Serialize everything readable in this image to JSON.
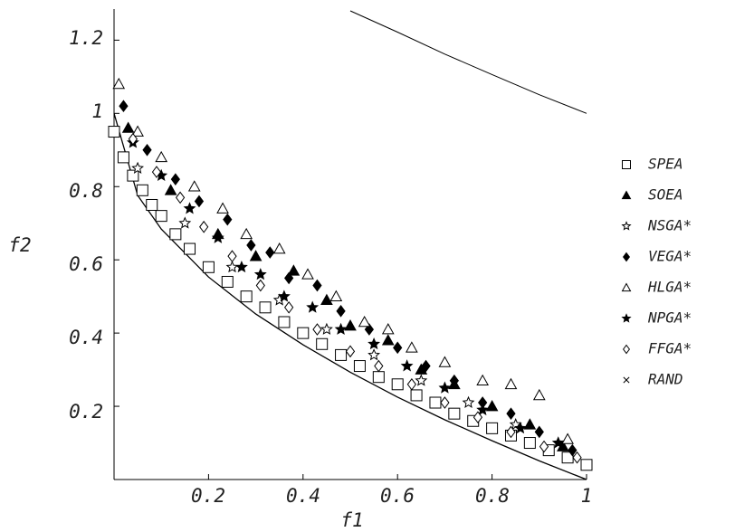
{
  "chart_data": {
    "type": "scatter",
    "xlabel": "f1",
    "ylabel": "f2",
    "xlim": [
      0,
      1
    ],
    "ylim": [
      0,
      1.28
    ],
    "xticks": [
      "0.2",
      "0.4",
      "0.6",
      "0.8",
      "1"
    ],
    "yticks": [
      "0.2",
      "0.4",
      "0.6",
      "0.8",
      "1",
      "1.2"
    ],
    "grid": false,
    "legend_position": "right",
    "legend": [
      "SPEA",
      "SOEA",
      "NSGA*",
      "VEGA*",
      "HLGA*",
      "NPGA*",
      "FFGA*",
      "RAND"
    ],
    "reference_curves": [
      {
        "desc": "pareto front f2 = 1 - sqrt(f1)",
        "x": [
          0,
          0.05,
          0.1,
          0.2,
          0.3,
          0.4,
          0.5,
          0.6,
          0.7,
          0.8,
          0.9,
          1.0
        ],
        "y": [
          1.0,
          0.776,
          0.684,
          0.553,
          0.452,
          0.368,
          0.293,
          0.225,
          0.163,
          0.106,
          0.051,
          0.0
        ]
      },
      {
        "desc": "upper curve",
        "x": [
          0.5,
          0.6,
          0.7,
          0.8,
          0.9,
          1.0
        ],
        "y": [
          1.28,
          1.222,
          1.162,
          1.106,
          1.051,
          1.0
        ]
      }
    ],
    "series": [
      {
        "name": "SPEA",
        "marker": "open-square",
        "x": [
          0.0,
          0.02,
          0.04,
          0.06,
          0.08,
          0.1,
          0.13,
          0.16,
          0.2,
          0.24,
          0.28,
          0.32,
          0.36,
          0.4,
          0.44,
          0.48,
          0.52,
          0.56,
          0.6,
          0.64,
          0.68,
          0.72,
          0.76,
          0.8,
          0.84,
          0.88,
          0.92,
          0.96,
          1.0
        ],
        "y": [
          0.95,
          0.88,
          0.83,
          0.79,
          0.75,
          0.72,
          0.67,
          0.63,
          0.58,
          0.54,
          0.5,
          0.47,
          0.43,
          0.4,
          0.37,
          0.34,
          0.31,
          0.28,
          0.26,
          0.23,
          0.21,
          0.18,
          0.16,
          0.14,
          0.12,
          0.1,
          0.08,
          0.06,
          0.04
        ]
      },
      {
        "name": "SOEA",
        "marker": "filled-triangle",
        "x": [
          0.03,
          0.12,
          0.22,
          0.3,
          0.38,
          0.45,
          0.5,
          0.58,
          0.65,
          0.72,
          0.8,
          0.88,
          0.95
        ],
        "y": [
          0.96,
          0.79,
          0.67,
          0.61,
          0.57,
          0.49,
          0.42,
          0.38,
          0.3,
          0.26,
          0.2,
          0.15,
          0.09
        ]
      },
      {
        "name": "NSGA*",
        "marker": "open-star",
        "x": [
          0.05,
          0.15,
          0.25,
          0.35,
          0.45,
          0.55,
          0.65,
          0.75,
          0.85
        ],
        "y": [
          0.85,
          0.7,
          0.58,
          0.49,
          0.41,
          0.34,
          0.27,
          0.21,
          0.15
        ]
      },
      {
        "name": "VEGA*",
        "marker": "filled-diamond",
        "x": [
          0.02,
          0.07,
          0.13,
          0.18,
          0.24,
          0.29,
          0.33,
          0.37,
          0.43,
          0.48,
          0.54,
          0.6,
          0.66,
          0.72,
          0.78,
          0.84,
          0.9,
          0.97
        ],
        "y": [
          1.02,
          0.9,
          0.82,
          0.76,
          0.71,
          0.64,
          0.62,
          0.55,
          0.53,
          0.46,
          0.41,
          0.36,
          0.31,
          0.27,
          0.21,
          0.18,
          0.13,
          0.08
        ]
      },
      {
        "name": "HLGA*",
        "marker": "open-triangle",
        "x": [
          0.01,
          0.05,
          0.1,
          0.17,
          0.23,
          0.28,
          0.35,
          0.41,
          0.47,
          0.53,
          0.58,
          0.63,
          0.7,
          0.78,
          0.84,
          0.9,
          0.96
        ],
        "y": [
          1.08,
          0.95,
          0.88,
          0.8,
          0.74,
          0.67,
          0.63,
          0.56,
          0.5,
          0.43,
          0.41,
          0.36,
          0.32,
          0.27,
          0.26,
          0.23,
          0.11
        ]
      },
      {
        "name": "NPGA*",
        "marker": "filled-star",
        "x": [
          0.04,
          0.1,
          0.16,
          0.22,
          0.27,
          0.31,
          0.36,
          0.42,
          0.48,
          0.55,
          0.62,
          0.7,
          0.78,
          0.86,
          0.94
        ],
        "y": [
          0.92,
          0.83,
          0.74,
          0.66,
          0.58,
          0.56,
          0.5,
          0.47,
          0.41,
          0.37,
          0.31,
          0.25,
          0.19,
          0.14,
          0.1
        ]
      },
      {
        "name": "FFGA*",
        "marker": "open-diamond",
        "x": [
          0.04,
          0.09,
          0.14,
          0.19,
          0.25,
          0.31,
          0.37,
          0.43,
          0.5,
          0.56,
          0.63,
          0.7,
          0.77,
          0.84,
          0.91,
          0.98
        ],
        "y": [
          0.93,
          0.84,
          0.77,
          0.69,
          0.61,
          0.53,
          0.47,
          0.41,
          0.35,
          0.31,
          0.26,
          0.21,
          0.17,
          0.13,
          0.09,
          0.06
        ]
      },
      {
        "name": "RAND",
        "marker": "cross",
        "x": [],
        "y": []
      }
    ]
  }
}
